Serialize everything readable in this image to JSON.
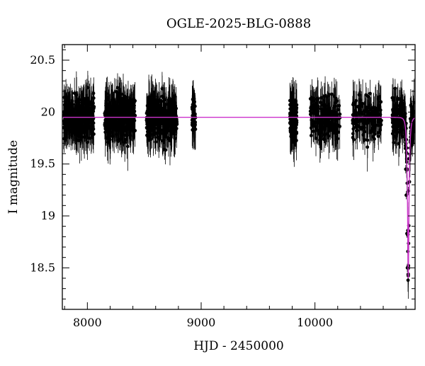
{
  "chart_data": {
    "type": "scatter",
    "title": "OGLE-2025-BLG-0888",
    "xlabel": "HJD - 2450000",
    "ylabel": "I magnitude",
    "xlim": [
      7780,
      10880
    ],
    "ylim": [
      20.65,
      18.1
    ],
    "y_inverted": true,
    "x_ticks": [
      8000,
      9000,
      10000
    ],
    "x_tick_labels": [
      "8000",
      "9000",
      "10000"
    ],
    "y_ticks": [
      18.5,
      19,
      19.5,
      20,
      20.5
    ],
    "y_tick_labels": [
      "18.5",
      "19",
      "19.5",
      "20",
      "20.5"
    ],
    "grid": false,
    "colors": {
      "points": "#000000",
      "model": "#cc33cc"
    },
    "model": {
      "baseline_mag": 19.95,
      "peak_hjd": 10820,
      "peak_mag": 18.5
    },
    "observing_seasons": [
      {
        "hjd_start": 7790,
        "hjd_end": 8060,
        "n": 320
      },
      {
        "hjd_start": 8150,
        "hjd_end": 8420,
        "n": 340
      },
      {
        "hjd_start": 8520,
        "hjd_end": 8790,
        "n": 340
      },
      {
        "hjd_start": 8920,
        "hjd_end": 8950,
        "n": 45
      },
      {
        "hjd_start": 9780,
        "hjd_end": 9840,
        "n": 160
      },
      {
        "hjd_start": 9960,
        "hjd_end": 10220,
        "n": 190
      },
      {
        "hjd_start": 10330,
        "hjd_end": 10590,
        "n": 150
      },
      {
        "hjd_start": 10680,
        "hjd_end": 10880,
        "n": 190
      }
    ],
    "points_peak": [
      {
        "x": 10812,
        "y": 18.5
      },
      {
        "x": 10808,
        "y": 18.83
      },
      {
        "x": 10816,
        "y": 18.86
      },
      {
        "x": 10802,
        "y": 19.2
      },
      {
        "x": 10822,
        "y": 19.24
      },
      {
        "x": 10798,
        "y": 19.45
      },
      {
        "x": 10828,
        "y": 19.55
      }
    ]
  }
}
